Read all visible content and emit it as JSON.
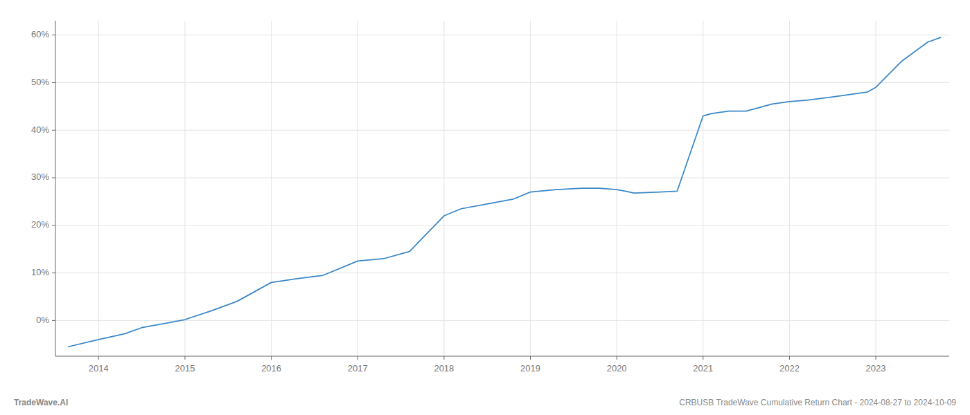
{
  "chart_data": {
    "type": "line",
    "x": [
      2013.65,
      2014.0,
      2014.3,
      2014.5,
      2014.8,
      2015.0,
      2015.3,
      2015.6,
      2016.0,
      2016.3,
      2016.6,
      2017.0,
      2017.3,
      2017.6,
      2018.0,
      2018.2,
      2018.5,
      2018.8,
      2019.0,
      2019.3,
      2019.6,
      2019.8,
      2020.0,
      2020.1,
      2020.2,
      2020.5,
      2020.7,
      2021.0,
      2021.1,
      2021.3,
      2021.5,
      2021.8,
      2022.0,
      2022.2,
      2022.5,
      2022.7,
      2022.9,
      2023.0,
      2023.3,
      2023.6,
      2023.75
    ],
    "values": [
      -0.055,
      -0.04,
      -0.028,
      -0.015,
      -0.005,
      0.002,
      0.02,
      0.04,
      0.08,
      0.088,
      0.095,
      0.125,
      0.13,
      0.145,
      0.22,
      0.235,
      0.245,
      0.255,
      0.27,
      0.275,
      0.278,
      0.278,
      0.275,
      0.272,
      0.268,
      0.27,
      0.272,
      0.43,
      0.435,
      0.44,
      0.44,
      0.455,
      0.46,
      0.463,
      0.47,
      0.475,
      0.48,
      0.49,
      0.545,
      0.585,
      0.595
    ],
    "color": "#3a87c8",
    "xlim": [
      2013.5,
      2023.85
    ],
    "ylim": [
      -0.075,
      0.63
    ],
    "xticks": [
      2014,
      2015,
      2016,
      2017,
      2018,
      2019,
      2020,
      2021,
      2022,
      2023
    ],
    "yticks": [
      {
        "value": 0.0,
        "label": "0%"
      },
      {
        "value": 0.1,
        "label": "10%"
      },
      {
        "value": 0.2,
        "label": "20%"
      },
      {
        "value": 0.3,
        "label": "30%"
      },
      {
        "value": 0.4,
        "label": "40%"
      },
      {
        "value": 0.5,
        "label": "50%"
      },
      {
        "value": 0.6,
        "label": "60%"
      }
    ],
    "grid": true,
    "annotations": [
      "TradeWave.AI",
      "CRBUSB TradeWave Cumulative Return Chart - 2024-08-27 to 2024-10-09"
    ]
  }
}
